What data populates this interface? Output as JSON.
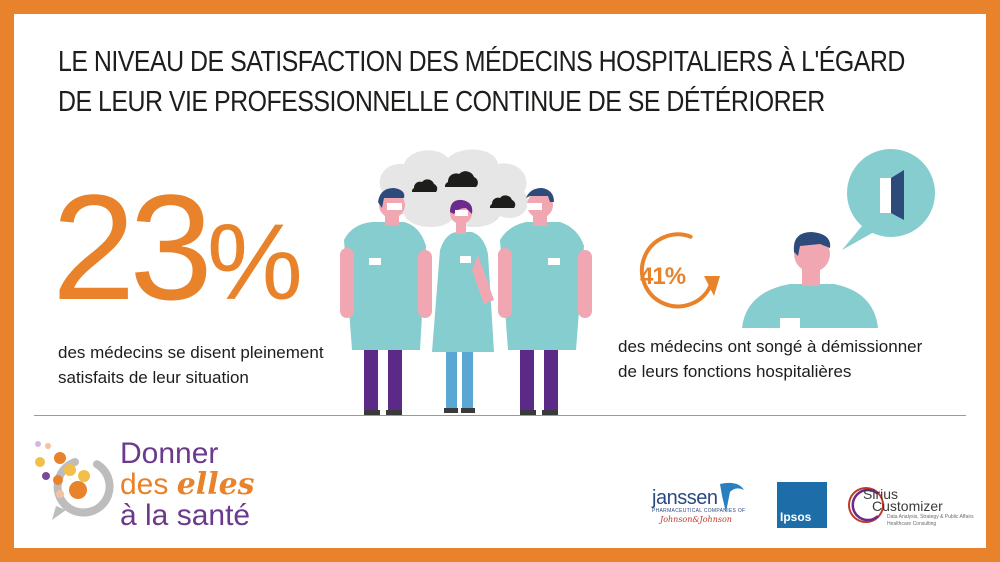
{
  "title": {
    "line1": "LE NIVEAU DE SATISFACTION DES MÉDECINS HOSPITALIERS À L'ÉGARD",
    "line2": "DE LEUR VIE PROFESSIONNELLE CONTINUE DE SE DÉTÉRIORER"
  },
  "left_stat": {
    "value": "23",
    "unit": "%",
    "caption_line1": "des médecins se disent pleinement",
    "caption_line2": "satisfaits de leur situation"
  },
  "right_stat": {
    "value": "41%",
    "caption_line1": "des médecins ont songé à démissionner",
    "caption_line2": "de leurs fonctions hospitalières"
  },
  "logos": {
    "donner_line1": "Donner",
    "donner_line2_a": "des ",
    "donner_line2_b": "elles",
    "donner_line3": "à la santé",
    "janssen": "janssen",
    "janssen_sub": "PHARMACEUTICAL COMPANIES OF",
    "jnj": "Johnson&Johnson",
    "ipsos": "Ipsos",
    "sirius_line1": "Sirius",
    "sirius_line2": "Customizer",
    "sirius_sub1": "Data Analysis, Strategy & Public Affairs",
    "sirius_sub2": "Healthcare Consulting"
  },
  "colors": {
    "accent": "#e8822b",
    "scrub": "#86cdd0",
    "trousers": "#5b2a86",
    "skin": "#f0a7b2",
    "hair": "#2c4a7a",
    "cloud": "#e6e6e6"
  }
}
